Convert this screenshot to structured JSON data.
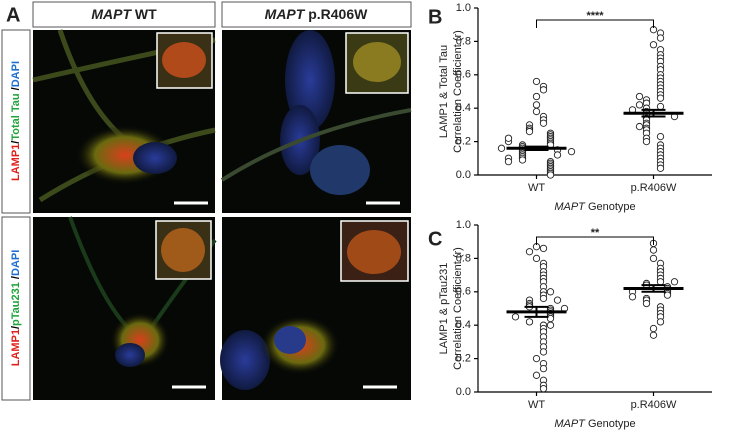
{
  "figure": {
    "panel_labels": [
      "A",
      "B",
      "C"
    ],
    "column_headers": [
      {
        "italic": "MAPT",
        "text": "WT"
      },
      {
        "italic": "MAPT",
        "text": "p.R406W"
      }
    ],
    "row_labels": [
      [
        {
          "text": "LAMP1",
          "color": "#e0201b"
        },
        {
          "text": "/",
          "color": "#000000"
        },
        {
          "text": "Total Tau",
          "color": "#1fa33a"
        },
        {
          "text": " /",
          "color": "#000000"
        },
        {
          "text": "DAPI",
          "color": "#1f6fd1"
        }
      ],
      [
        {
          "text": "LAMP1",
          "color": "#e0201b"
        },
        {
          "text": "/",
          "color": "#000000"
        },
        {
          "text": "pTau231",
          "color": "#1fa33a"
        },
        {
          "text": " /",
          "color": "#000000"
        },
        {
          "text": "DAPI",
          "color": "#1f6fd1"
        }
      ]
    ]
  },
  "chart_data": [
    {
      "type": "dot",
      "y_label": [
        "LAMP1 & Total Tau",
        "Correlation Coefficient (r)"
      ],
      "x_label": {
        "italic": "MAPT",
        "text": "Genotype"
      },
      "categories": [
        "WT",
        "p.R406W"
      ],
      "values": [
        [
          0.56,
          0.53,
          0.51,
          0.47,
          0.42,
          0.38,
          0.35,
          0.33,
          0.31,
          0.3,
          0.28,
          0.27,
          0.26,
          0.25,
          0.24,
          0.23,
          0.22,
          0.21,
          0.2,
          0.19,
          0.18,
          0.18,
          0.17,
          0.16,
          0.15,
          0.15,
          0.14,
          0.13,
          0.12,
          0.12,
          0.11,
          0.1,
          0.09,
          0.08,
          0.07,
          0.06,
          0.05,
          0.04,
          0.03,
          0.02,
          0.01,
          0.0,
          0.2,
          0.14,
          0.1,
          0.16,
          0.22,
          0.08
        ],
        [
          0.87,
          0.85,
          0.82,
          0.78,
          0.75,
          0.72,
          0.7,
          0.68,
          0.65,
          0.63,
          0.6,
          0.58,
          0.56,
          0.54,
          0.52,
          0.5,
          0.48,
          0.46,
          0.45,
          0.43,
          0.41,
          0.4,
          0.38,
          0.37,
          0.36,
          0.34,
          0.33,
          0.31,
          0.3,
          0.28,
          0.27,
          0.25,
          0.23,
          0.22,
          0.2,
          0.18,
          0.16,
          0.14,
          0.12,
          0.1,
          0.08,
          0.06,
          0.04,
          0.42,
          0.35,
          0.29,
          0.47,
          0.39
        ]
      ],
      "means": [
        0.16,
        0.37
      ],
      "sem": [
        0.01,
        0.02
      ],
      "significance": "****",
      "ylim": [
        0,
        1
      ],
      "yticks": [
        {
          "value": 0,
          "label": "0.0"
        },
        {
          "value": 0.2,
          "label": "0.2"
        },
        {
          "value": 0.4,
          "label": "0.4"
        },
        {
          "value": 0.6,
          "label": "0.6"
        },
        {
          "value": 0.8,
          "label": "0.8"
        },
        {
          "value": 1,
          "label": "1.0"
        }
      ]
    },
    {
      "type": "dot",
      "y_label": [
        "LAMP1 & pTau231",
        "Correlation Coefficient (r)"
      ],
      "x_label": {
        "italic": "MAPT",
        "text": "Genotype"
      },
      "categories": [
        "WT",
        "p.R406W"
      ],
      "values": [
        [
          0.87,
          0.86,
          0.84,
          0.8,
          0.77,
          0.75,
          0.72,
          0.7,
          0.68,
          0.66,
          0.63,
          0.6,
          0.58,
          0.56,
          0.55,
          0.53,
          0.52,
          0.51,
          0.5,
          0.49,
          0.48,
          0.47,
          0.46,
          0.45,
          0.44,
          0.42,
          0.4,
          0.38,
          0.36,
          0.33,
          0.3,
          0.27,
          0.24,
          0.2,
          0.17,
          0.14,
          0.1,
          0.07,
          0.04,
          0.02,
          0.5,
          0.45,
          0.55,
          0.4,
          0.6
        ],
        [
          0.89,
          0.85,
          0.8,
          0.77,
          0.74,
          0.72,
          0.7,
          0.68,
          0.66,
          0.65,
          0.64,
          0.63,
          0.62,
          0.61,
          0.6,
          0.59,
          0.58,
          0.56,
          0.55,
          0.53,
          0.51,
          0.49,
          0.47,
          0.45,
          0.42,
          0.38,
          0.34,
          0.6,
          0.66,
          0.57
        ]
      ],
      "means": [
        0.48,
        0.62
      ],
      "sem": [
        0.03,
        0.02
      ],
      "significance": "**",
      "ylim": [
        0,
        1
      ],
      "yticks": [
        {
          "value": 0,
          "label": "0.0"
        },
        {
          "value": 0.2,
          "label": "0.2"
        },
        {
          "value": 0.4,
          "label": "0.4"
        },
        {
          "value": 0.6,
          "label": "0.6"
        },
        {
          "value": 0.8,
          "label": "0.8"
        },
        {
          "value": 1,
          "label": "1.0"
        }
      ]
    }
  ]
}
